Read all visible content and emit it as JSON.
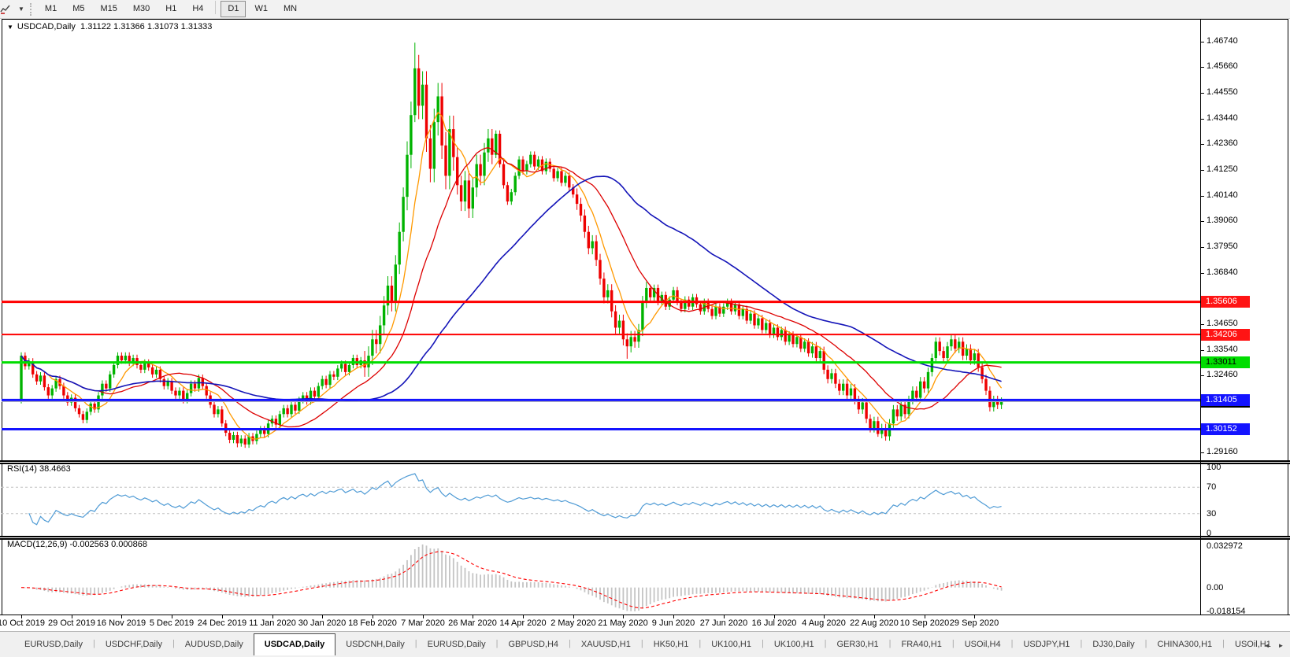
{
  "toolbar": {
    "timeframes": [
      "M1",
      "M5",
      "M15",
      "M30",
      "H1",
      "H4",
      "D1",
      "W1",
      "MN"
    ],
    "active_timeframe": "D1"
  },
  "chart": {
    "symbol_title": "USDCAD,Daily",
    "ohlc_text": "1.31122 1.31366 1.31073 1.31333",
    "open": "1.31122",
    "high": "1.31366",
    "low": "1.31073",
    "close": "1.31333"
  },
  "price_axis": {
    "ticks": [
      "1.46740",
      "1.45660",
      "1.44550",
      "1.43440",
      "1.42360",
      "1.41250",
      "1.40140",
      "1.39060",
      "1.37950",
      "1.36840",
      "1.34650",
      "1.33540",
      "1.32460",
      "1.29160"
    ],
    "badges": [
      {
        "text": "1.35606",
        "bg": "#ff1414",
        "fg": "#ffffff"
      },
      {
        "text": "1.34206",
        "bg": "#ff1414",
        "fg": "#ffffff"
      },
      {
        "text": "1.33011",
        "bg": "#00dd00",
        "fg": "#000000"
      },
      {
        "text": "1.31333",
        "bg": "#000000",
        "fg": "#ffffff"
      },
      {
        "text": "1.31405",
        "bg": "#1414ff",
        "fg": "#ffffff"
      },
      {
        "text": "1.30152",
        "bg": "#1414ff",
        "fg": "#ffffff"
      }
    ]
  },
  "hlines": [
    {
      "price": 1.35606,
      "color": "#ff0000",
      "w": 3
    },
    {
      "price": 1.34206,
      "color": "#ff0000",
      "w": 2
    },
    {
      "price": 1.33011,
      "color": "#00dd00",
      "w": 3
    },
    {
      "price": 1.31333,
      "color": "#b4b4b4",
      "w": 1
    },
    {
      "price": 1.31405,
      "color": "#1414ff",
      "w": 3
    },
    {
      "price": 1.30152,
      "color": "#1414ff",
      "w": 3
    }
  ],
  "date_axis": [
    "10 Oct 2019",
    "29 Oct 2019",
    "16 Nov 2019",
    "5 Dec 2019",
    "24 Dec 2019",
    "11 Jan 2020",
    "30 Jan 2020",
    "18 Feb 2020",
    "7 Mar 2020",
    "26 Mar 2020",
    "14 Apr 2020",
    "2 May 2020",
    "21 May 2020",
    "9 Jun 2020",
    "27 Jun 2020",
    "16 Jul 2020",
    "4 Aug 2020",
    "22 Aug 2020",
    "10 Sep 2020",
    "29 Sep 2020"
  ],
  "rsi": {
    "label": "RSI(14)",
    "value": "38.4663",
    "axis": [
      "100",
      "70",
      "30",
      "0"
    ],
    "levels": [
      70,
      30
    ],
    "line_color": "#4f9bd5"
  },
  "macd": {
    "label": "MACD(12,26,9)",
    "values": "-0.002563 0.000868",
    "axis_max": "0.032972",
    "axis_zero": "0.00",
    "axis_min": "-0.018154",
    "hist_color": "#c4c4c4",
    "signal_color": "#ff0000"
  },
  "tabs": {
    "items": [
      "EURUSD,Daily",
      "USDCHF,Daily",
      "AUDUSD,Daily",
      "USDCAD,Daily",
      "USDCNH,Daily",
      "EURUSD,Daily",
      "GBPUSD,H4",
      "XAUUSD,H1",
      "HK50,H1",
      "UK100,H1",
      "UK100,H1",
      "GER30,H1",
      "FRA40,H1",
      "USOil,H4",
      "USDJPY,H1",
      "DJ30,Daily",
      "CHINA300,H1",
      "USOil,H1"
    ],
    "active_index": 3,
    "scroll_left": "◄",
    "scroll_right": "►"
  },
  "chart_data": {
    "type": "candlestick",
    "symbol": "USDCAD",
    "timeframe": "Daily",
    "up_color": "#00b300",
    "down_color": "#ee0000",
    "ma_fast": {
      "period": 8,
      "color": "#ff9900"
    },
    "ma_mid": {
      "period": 21,
      "color": "#dd0000"
    },
    "ma_slow": {
      "period": 55,
      "color": "#1414b8"
    },
    "y_axis_range": [
      1.28823,
      1.47717
    ],
    "first_open": 1.314,
    "wick_base": 0.0016,
    "wick_zones": [
      [
        89,
        122,
        2.8
      ],
      [
        100,
        112,
        4.0
      ],
      [
        144,
        162,
        1.8
      ],
      [
        205,
        254,
        1.3
      ]
    ],
    "overrides": {
      "102": {
        "h": 1.467,
        "l": 1.433
      },
      "56": {
        "l": 1.2938
      },
      "157": {
        "l": 1.3317
      },
      "222": {
        "l": 1.2983
      }
    },
    "closes": [
      1.333,
      1.3285,
      1.3305,
      1.325,
      1.322,
      1.3245,
      1.3195,
      1.316,
      1.319,
      1.323,
      1.32,
      1.316,
      1.313,
      1.315,
      1.3105,
      1.308,
      1.3055,
      1.309,
      1.3125,
      1.31,
      1.316,
      1.321,
      1.319,
      1.325,
      1.329,
      1.333,
      1.331,
      1.333,
      1.33,
      1.332,
      1.329,
      1.327,
      1.33,
      1.328,
      1.325,
      1.327,
      1.323,
      1.32,
      1.322,
      1.318,
      1.316,
      1.318,
      1.314,
      1.317,
      1.321,
      1.319,
      1.3235,
      1.32,
      1.316,
      1.312,
      1.308,
      1.31,
      1.304,
      1.3,
      1.297,
      1.299,
      1.2955,
      1.2975,
      1.295,
      1.2985,
      1.2965,
      1.2995,
      1.3015,
      1.2995,
      1.304,
      1.306,
      1.3035,
      1.308,
      1.3105,
      1.308,
      1.312,
      1.3095,
      1.314,
      1.316,
      1.3135,
      1.318,
      1.3155,
      1.32,
      1.323,
      1.3205,
      1.325,
      1.324,
      1.3275,
      1.3295,
      1.326,
      1.329,
      1.332,
      1.329,
      1.331,
      1.328,
      1.333,
      1.34,
      1.338,
      1.346,
      1.3545,
      1.363,
      1.356,
      1.372,
      1.386,
      1.401,
      1.419,
      1.436,
      1.456,
      1.44,
      1.449,
      1.426,
      1.413,
      1.433,
      1.444,
      1.423,
      1.41,
      1.43,
      1.418,
      1.406,
      1.399,
      1.408,
      1.396,
      1.405,
      1.415,
      1.41,
      1.42,
      1.426,
      1.419,
      1.428,
      1.415,
      1.406,
      1.399,
      1.403,
      1.41,
      1.417,
      1.412,
      1.415,
      1.419,
      1.414,
      1.417,
      1.412,
      1.416,
      1.413,
      1.409,
      1.412,
      1.407,
      1.41,
      1.405,
      1.402,
      1.398,
      1.393,
      1.386,
      1.379,
      1.382,
      1.374,
      1.366,
      1.358,
      1.361,
      1.352,
      1.345,
      1.348,
      1.34,
      1.337,
      1.341,
      1.339,
      1.344,
      1.356,
      1.362,
      1.358,
      1.362,
      1.356,
      1.359,
      1.354,
      1.357,
      1.361,
      1.356,
      1.353,
      1.357,
      1.354,
      1.358,
      1.355,
      1.352,
      1.356,
      1.353,
      1.35,
      1.354,
      1.351,
      1.354,
      1.356,
      1.352,
      1.355,
      1.35,
      1.353,
      1.348,
      1.351,
      1.346,
      1.349,
      1.344,
      1.347,
      1.342,
      1.345,
      1.341,
      1.344,
      1.339,
      1.342,
      1.338,
      1.341,
      1.336,
      1.339,
      1.334,
      1.337,
      1.332,
      1.335,
      1.327,
      1.323,
      1.3255,
      1.321,
      1.318,
      1.321,
      1.316,
      1.319,
      1.314,
      1.31,
      1.313,
      1.306,
      1.302,
      1.305,
      1.2995,
      1.302,
      1.2985,
      1.304,
      1.31,
      1.307,
      1.312,
      1.308,
      1.314,
      1.318,
      1.315,
      1.322,
      1.319,
      1.326,
      1.332,
      1.339,
      1.335,
      1.332,
      1.337,
      1.34,
      1.336,
      1.339,
      1.333,
      1.336,
      1.331,
      1.334,
      1.328,
      1.323,
      1.318,
      1.311,
      1.314,
      1.312,
      1.3133
    ]
  }
}
